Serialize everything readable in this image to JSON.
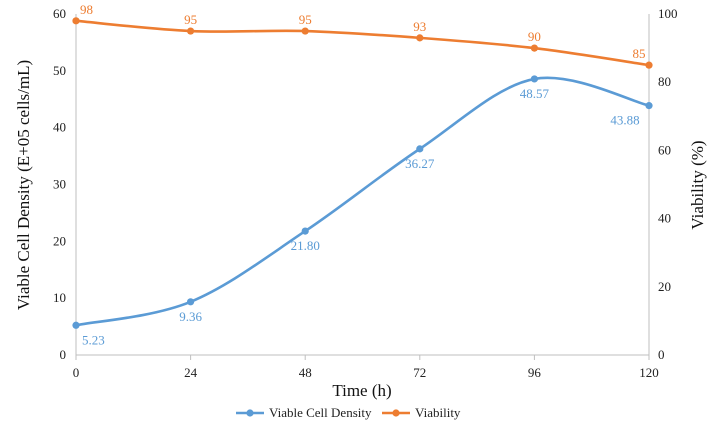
{
  "chart_data": {
    "type": "line",
    "title": "",
    "xlabel": "Time (h)",
    "ylabel_left": "Viable Cell Density (E+05 cells/mL)",
    "ylabel_right": "Viability (%)",
    "x": [
      0,
      24,
      48,
      72,
      96,
      120
    ],
    "x_ticks": [
      "0",
      "24",
      "48",
      "72",
      "96",
      "120"
    ],
    "ylim_left": [
      0,
      60
    ],
    "yticks_left": [
      "0",
      "10",
      "20",
      "30",
      "40",
      "50",
      "60"
    ],
    "ylim_right": [
      0,
      100
    ],
    "yticks_right": [
      "0",
      "20",
      "40",
      "60",
      "80",
      "100"
    ],
    "grid": false,
    "legend_position": "bottom",
    "series": [
      {
        "name": "Viable Cell Density",
        "axis": "left",
        "color": "#5b9bd5",
        "values": [
          5.23,
          9.36,
          21.8,
          36.27,
          48.57,
          43.88
        ],
        "labels": [
          "5.23",
          "9.36",
          "21.80",
          "36.27",
          "48.57",
          "43.88"
        ]
      },
      {
        "name": "Viability",
        "axis": "right",
        "color": "#ed7d31",
        "values": [
          98,
          95,
          95,
          93,
          90,
          85
        ],
        "labels": [
          "98",
          "95",
          "95",
          "93",
          "90",
          "85"
        ]
      }
    ]
  }
}
